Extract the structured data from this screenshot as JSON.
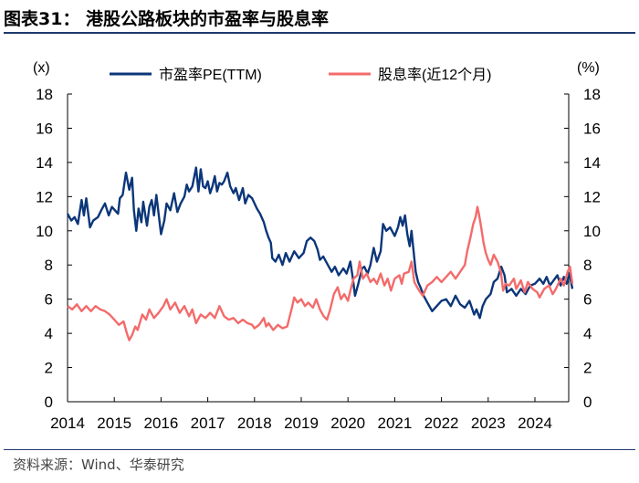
{
  "header": {
    "title": "图表31：  港股公路板块的市盈率与股息率"
  },
  "footer": {
    "source": "资料来源：Wind、华泰研究"
  },
  "chart_data": {
    "type": "line",
    "title": "港股公路板块的市盈率与股息率",
    "y_left": {
      "label": "(x)",
      "range": [
        0,
        18
      ],
      "ticks": [
        "0",
        "2",
        "4",
        "6",
        "8",
        "10",
        "12",
        "14",
        "16",
        "18"
      ]
    },
    "y_right": {
      "label": "(%)",
      "range": [
        0,
        18
      ],
      "ticks": [
        "0",
        "2",
        "4",
        "6",
        "8",
        "10",
        "12",
        "14",
        "16",
        "18"
      ]
    },
    "x": {
      "range": [
        2014,
        2024.8
      ],
      "ticks": [
        "2014",
        "2015",
        "2016",
        "2017",
        "2018",
        "2019",
        "2020",
        "2021",
        "2022",
        "2023",
        "2024"
      ]
    },
    "grid": false,
    "legend": "top",
    "series": [
      {
        "name": "市盈率PE(TTM)",
        "color": "#0b3679",
        "axis": "left",
        "points": [
          [
            2014.0,
            11.0
          ],
          [
            2014.08,
            10.6
          ],
          [
            2014.15,
            10.8
          ],
          [
            2014.22,
            10.4
          ],
          [
            2014.3,
            11.8
          ],
          [
            2014.35,
            10.9
          ],
          [
            2014.4,
            11.9
          ],
          [
            2014.48,
            10.2
          ],
          [
            2014.55,
            10.6
          ],
          [
            2014.65,
            10.8
          ],
          [
            2014.72,
            11.2
          ],
          [
            2014.8,
            11.6
          ],
          [
            2014.88,
            10.9
          ],
          [
            2014.95,
            11.4
          ],
          [
            2015.08,
            11.0
          ],
          [
            2015.12,
            11.9
          ],
          [
            2015.18,
            12.1
          ],
          [
            2015.25,
            13.4
          ],
          [
            2015.32,
            12.4
          ],
          [
            2015.38,
            13.1
          ],
          [
            2015.42,
            11.2
          ],
          [
            2015.47,
            10.0
          ],
          [
            2015.52,
            11.3
          ],
          [
            2015.58,
            10.5
          ],
          [
            2015.62,
            11.7
          ],
          [
            2015.7,
            10.3
          ],
          [
            2015.75,
            11.4
          ],
          [
            2015.8,
            11.8
          ],
          [
            2015.85,
            10.9
          ],
          [
            2015.9,
            12.1
          ],
          [
            2016.0,
            9.8
          ],
          [
            2016.07,
            10.6
          ],
          [
            2016.12,
            11.6
          ],
          [
            2016.2,
            11.2
          ],
          [
            2016.28,
            12.2
          ],
          [
            2016.35,
            11.1
          ],
          [
            2016.42,
            11.6
          ],
          [
            2016.5,
            12.0
          ],
          [
            2016.55,
            12.7
          ],
          [
            2016.6,
            12.3
          ],
          [
            2016.67,
            12.6
          ],
          [
            2016.75,
            13.7
          ],
          [
            2016.8,
            12.3
          ],
          [
            2016.85,
            13.6
          ],
          [
            2016.9,
            12.6
          ],
          [
            2016.95,
            12.5
          ],
          [
            2017.0,
            12.9
          ],
          [
            2017.05,
            12.2
          ],
          [
            2017.1,
            12.6
          ],
          [
            2017.15,
            13.2
          ],
          [
            2017.2,
            12.3
          ],
          [
            2017.25,
            12.8
          ],
          [
            2017.3,
            12.7
          ],
          [
            2017.35,
            12.9
          ],
          [
            2017.42,
            13.4
          ],
          [
            2017.48,
            12.6
          ],
          [
            2017.55,
            12.2
          ],
          [
            2017.6,
            12.5
          ],
          [
            2017.67,
            11.8
          ],
          [
            2017.75,
            12.5
          ],
          [
            2017.8,
            11.6
          ],
          [
            2017.87,
            12.1
          ],
          [
            2017.95,
            11.9
          ],
          [
            2018.05,
            11.3
          ],
          [
            2018.12,
            11.0
          ],
          [
            2018.2,
            10.5
          ],
          [
            2018.25,
            10.0
          ],
          [
            2018.3,
            9.6
          ],
          [
            2018.35,
            9.3
          ],
          [
            2018.38,
            8.4
          ],
          [
            2018.45,
            8.2
          ],
          [
            2018.52,
            8.6
          ],
          [
            2018.6,
            8.0
          ],
          [
            2018.67,
            8.7
          ],
          [
            2018.75,
            8.2
          ],
          [
            2018.85,
            8.8
          ],
          [
            2018.95,
            8.4
          ],
          [
            2019.05,
            8.7
          ],
          [
            2019.12,
            9.4
          ],
          [
            2019.2,
            9.6
          ],
          [
            2019.28,
            9.4
          ],
          [
            2019.35,
            8.9
          ],
          [
            2019.4,
            8.3
          ],
          [
            2019.47,
            8.5
          ],
          [
            2019.55,
            8.1
          ],
          [
            2019.65,
            7.6
          ],
          [
            2019.72,
            7.9
          ],
          [
            2019.8,
            7.4
          ],
          [
            2019.9,
            7.8
          ],
          [
            2019.97,
            7.5
          ],
          [
            2020.05,
            8.2
          ],
          [
            2020.1,
            7.3
          ],
          [
            2020.15,
            6.2
          ],
          [
            2020.22,
            6.9
          ],
          [
            2020.3,
            7.8
          ],
          [
            2020.35,
            7.9
          ],
          [
            2020.42,
            7.5
          ],
          [
            2020.48,
            8.0
          ],
          [
            2020.55,
            9.0
          ],
          [
            2020.62,
            8.2
          ],
          [
            2020.7,
            8.8
          ],
          [
            2020.75,
            10.4
          ],
          [
            2020.82,
            10.0
          ],
          [
            2020.9,
            10.2
          ],
          [
            2021.0,
            9.7
          ],
          [
            2021.07,
            10.2
          ],
          [
            2021.12,
            10.8
          ],
          [
            2021.17,
            10.3
          ],
          [
            2021.22,
            10.9
          ],
          [
            2021.27,
            9.8
          ],
          [
            2021.32,
            9.1
          ],
          [
            2021.36,
            10.0
          ],
          [
            2021.4,
            8.9
          ],
          [
            2021.45,
            7.6
          ],
          [
            2021.5,
            7.0
          ],
          [
            2021.55,
            6.7
          ],
          [
            2021.62,
            6.2
          ],
          [
            2021.7,
            5.8
          ],
          [
            2021.8,
            5.3
          ],
          [
            2021.9,
            5.6
          ],
          [
            2022.0,
            5.9
          ],
          [
            2022.1,
            6.0
          ],
          [
            2022.2,
            5.6
          ],
          [
            2022.3,
            6.2
          ],
          [
            2022.4,
            5.7
          ],
          [
            2022.5,
            5.5
          ],
          [
            2022.6,
            5.9
          ],
          [
            2022.7,
            5.1
          ],
          [
            2022.75,
            5.4
          ],
          [
            2022.82,
            4.9
          ],
          [
            2022.88,
            5.6
          ],
          [
            2022.95,
            6.0
          ],
          [
            2023.05,
            6.3
          ],
          [
            2023.12,
            7.0
          ],
          [
            2023.2,
            7.2
          ],
          [
            2023.28,
            7.9
          ],
          [
            2023.35,
            7.4
          ],
          [
            2023.4,
            6.4
          ],
          [
            2023.5,
            6.6
          ],
          [
            2023.6,
            6.2
          ],
          [
            2023.7,
            6.6
          ],
          [
            2023.8,
            6.3
          ],
          [
            2023.9,
            6.8
          ],
          [
            2024.0,
            6.9
          ],
          [
            2024.1,
            7.2
          ],
          [
            2024.18,
            6.9
          ],
          [
            2024.25,
            7.3
          ],
          [
            2024.32,
            6.8
          ],
          [
            2024.4,
            7.1
          ],
          [
            2024.48,
            7.4
          ],
          [
            2024.55,
            6.8
          ],
          [
            2024.62,
            7.3
          ],
          [
            2024.68,
            6.9
          ],
          [
            2024.74,
            7.5
          ],
          [
            2024.8,
            6.6
          ]
        ]
      },
      {
        "name": "股息率(近12个月)",
        "color": "#f36b6b",
        "axis": "right",
        "points": [
          [
            2014.0,
            5.6
          ],
          [
            2014.1,
            5.4
          ],
          [
            2014.2,
            5.7
          ],
          [
            2014.3,
            5.3
          ],
          [
            2014.4,
            5.6
          ],
          [
            2014.5,
            5.3
          ],
          [
            2014.6,
            5.6
          ],
          [
            2014.7,
            5.4
          ],
          [
            2014.8,
            5.3
          ],
          [
            2014.9,
            5.1
          ],
          [
            2015.0,
            4.8
          ],
          [
            2015.1,
            4.5
          ],
          [
            2015.2,
            4.7
          ],
          [
            2015.27,
            4.0
          ],
          [
            2015.32,
            3.6
          ],
          [
            2015.38,
            3.9
          ],
          [
            2015.45,
            4.4
          ],
          [
            2015.5,
            4.2
          ],
          [
            2015.6,
            5.1
          ],
          [
            2015.68,
            4.8
          ],
          [
            2015.75,
            5.4
          ],
          [
            2015.85,
            4.9
          ],
          [
            2015.95,
            5.2
          ],
          [
            2016.05,
            5.6
          ],
          [
            2016.12,
            6.0
          ],
          [
            2016.2,
            5.4
          ],
          [
            2016.3,
            5.8
          ],
          [
            2016.4,
            5.2
          ],
          [
            2016.5,
            5.6
          ],
          [
            2016.6,
            5.0
          ],
          [
            2016.67,
            5.4
          ],
          [
            2016.75,
            4.6
          ],
          [
            2016.85,
            5.1
          ],
          [
            2016.95,
            4.9
          ],
          [
            2017.05,
            5.2
          ],
          [
            2017.15,
            4.9
          ],
          [
            2017.25,
            5.6
          ],
          [
            2017.35,
            5.0
          ],
          [
            2017.45,
            4.8
          ],
          [
            2017.55,
            4.9
          ],
          [
            2017.65,
            4.6
          ],
          [
            2017.75,
            4.8
          ],
          [
            2017.85,
            4.6
          ],
          [
            2017.95,
            4.5
          ],
          [
            2018.0,
            4.3
          ],
          [
            2018.1,
            4.5
          ],
          [
            2018.2,
            4.9
          ],
          [
            2018.25,
            4.4
          ],
          [
            2018.3,
            4.6
          ],
          [
            2018.4,
            4.2
          ],
          [
            2018.5,
            4.5
          ],
          [
            2018.6,
            4.3
          ],
          [
            2018.7,
            4.4
          ],
          [
            2018.8,
            5.5
          ],
          [
            2018.85,
            6.1
          ],
          [
            2018.92,
            5.8
          ],
          [
            2019.0,
            6.0
          ],
          [
            2019.08,
            5.6
          ],
          [
            2019.15,
            5.8
          ],
          [
            2019.25,
            5.5
          ],
          [
            2019.32,
            6.0
          ],
          [
            2019.4,
            5.4
          ],
          [
            2019.48,
            5.0
          ],
          [
            2019.55,
            4.8
          ],
          [
            2019.62,
            5.4
          ],
          [
            2019.7,
            6.3
          ],
          [
            2019.78,
            6.7
          ],
          [
            2019.85,
            6.0
          ],
          [
            2019.92,
            6.3
          ],
          [
            2020.0,
            5.9
          ],
          [
            2020.05,
            6.5
          ],
          [
            2020.12,
            7.2
          ],
          [
            2020.2,
            7.4
          ],
          [
            2020.25,
            8.2
          ],
          [
            2020.32,
            7.2
          ],
          [
            2020.4,
            7.5
          ],
          [
            2020.48,
            7.0
          ],
          [
            2020.55,
            7.2
          ],
          [
            2020.62,
            6.9
          ],
          [
            2020.7,
            7.5
          ],
          [
            2020.78,
            6.8
          ],
          [
            2020.85,
            7.2
          ],
          [
            2020.92,
            6.5
          ],
          [
            2021.0,
            7.2
          ],
          [
            2021.1,
            7.4
          ],
          [
            2021.15,
            6.9
          ],
          [
            2021.2,
            7.5
          ],
          [
            2021.3,
            7.6
          ],
          [
            2021.36,
            8.2
          ],
          [
            2021.42,
            7.0
          ],
          [
            2021.5,
            6.6
          ],
          [
            2021.6,
            6.2
          ],
          [
            2021.7,
            6.8
          ],
          [
            2021.8,
            7.0
          ],
          [
            2021.9,
            7.3
          ],
          [
            2022.0,
            7.0
          ],
          [
            2022.1,
            7.3
          ],
          [
            2022.2,
            7.6
          ],
          [
            2022.3,
            7.2
          ],
          [
            2022.4,
            7.6
          ],
          [
            2022.5,
            8.0
          ],
          [
            2022.55,
            8.8
          ],
          [
            2022.62,
            9.6
          ],
          [
            2022.68,
            10.4
          ],
          [
            2022.73,
            10.8
          ],
          [
            2022.77,
            11.4
          ],
          [
            2022.8,
            11.0
          ],
          [
            2022.85,
            10.2
          ],
          [
            2022.9,
            9.3
          ],
          [
            2022.95,
            8.7
          ],
          [
            2023.0,
            8.3
          ],
          [
            2023.05,
            8.0
          ],
          [
            2023.12,
            8.6
          ],
          [
            2023.2,
            8.2
          ],
          [
            2023.27,
            7.6
          ],
          [
            2023.32,
            6.5
          ],
          [
            2023.37,
            6.9
          ],
          [
            2023.45,
            6.8
          ],
          [
            2023.55,
            7.2
          ],
          [
            2023.6,
            6.6
          ],
          [
            2023.7,
            7.1
          ],
          [
            2023.78,
            6.4
          ],
          [
            2023.85,
            7.0
          ],
          [
            2023.95,
            6.6
          ],
          [
            2024.05,
            6.4
          ],
          [
            2024.1,
            6.1
          ],
          [
            2024.2,
            6.6
          ],
          [
            2024.3,
            6.8
          ],
          [
            2024.38,
            6.3
          ],
          [
            2024.45,
            6.6
          ],
          [
            2024.55,
            7.2
          ],
          [
            2024.62,
            6.8
          ],
          [
            2024.7,
            7.6
          ],
          [
            2024.75,
            7.9
          ],
          [
            2024.8,
            6.9
          ]
        ]
      }
    ]
  }
}
